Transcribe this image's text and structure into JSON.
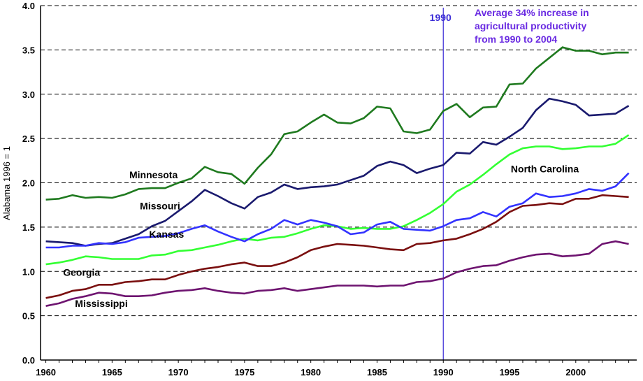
{
  "chart_data": {
    "type": "line",
    "ylabel": "Alabama 1996 = 1",
    "xlim": [
      1960,
      2004
    ],
    "ylim": [
      0,
      4
    ],
    "x_ticks": [
      1960,
      1965,
      1970,
      1975,
      1980,
      1985,
      1990,
      1995,
      2000
    ],
    "y_ticks": [
      "0.0",
      "0.5",
      "1.0",
      "1.5",
      "2.0",
      "2.5",
      "3.0",
      "3.5",
      "4.0"
    ],
    "grid": "horizontal dashed",
    "x": [
      1960,
      1961,
      1962,
      1963,
      1964,
      1965,
      1966,
      1967,
      1968,
      1969,
      1970,
      1971,
      1972,
      1973,
      1974,
      1975,
      1976,
      1977,
      1978,
      1979,
      1980,
      1981,
      1982,
      1983,
      1984,
      1985,
      1986,
      1987,
      1988,
      1989,
      1990,
      1991,
      1992,
      1993,
      1994,
      1995,
      1996,
      1997,
      1998,
      1999,
      2000,
      2001,
      2002,
      2003,
      2004
    ],
    "series": [
      {
        "name": "Minnesota",
        "color": "#1f7a1f",
        "values": [
          1.81,
          1.82,
          1.86,
          1.83,
          1.84,
          1.83,
          1.87,
          1.93,
          1.94,
          1.94,
          2.0,
          2.05,
          2.18,
          2.12,
          2.1,
          1.99,
          2.17,
          2.32,
          2.55,
          2.58,
          2.68,
          2.77,
          2.68,
          2.67,
          2.73,
          2.86,
          2.84,
          2.58,
          2.56,
          2.6,
          2.81,
          2.89,
          2.74,
          2.85,
          2.86,
          3.11,
          3.12,
          3.29,
          3.41,
          3.53,
          3.49,
          3.49,
          3.45,
          3.47,
          3.47
        ]
      },
      {
        "name": "Missouri",
        "color": "#1a1a6e",
        "values": [
          1.34,
          1.33,
          1.32,
          1.29,
          1.31,
          1.32,
          1.37,
          1.42,
          1.51,
          1.57,
          1.68,
          1.79,
          1.92,
          1.85,
          1.77,
          1.71,
          1.84,
          1.89,
          1.98,
          1.93,
          1.95,
          1.96,
          1.98,
          2.03,
          2.08,
          2.19,
          2.24,
          2.2,
          2.11,
          2.16,
          2.2,
          2.34,
          2.33,
          2.46,
          2.43,
          2.52,
          2.62,
          2.82,
          2.95,
          2.92,
          2.88,
          2.76,
          2.77,
          2.78,
          2.87
        ]
      },
      {
        "name": "North Carolina",
        "color": "#33ff33",
        "values": [
          1.08,
          1.1,
          1.13,
          1.17,
          1.16,
          1.14,
          1.14,
          1.14,
          1.18,
          1.19,
          1.23,
          1.24,
          1.27,
          1.3,
          1.34,
          1.37,
          1.35,
          1.38,
          1.39,
          1.43,
          1.48,
          1.52,
          1.51,
          1.48,
          1.49,
          1.48,
          1.48,
          1.51,
          1.58,
          1.66,
          1.76,
          1.9,
          1.98,
          2.09,
          2.21,
          2.32,
          2.39,
          2.41,
          2.41,
          2.38,
          2.39,
          2.41,
          2.41,
          2.44,
          2.54
        ]
      },
      {
        "name": "Kansas",
        "color": "#3333ff",
        "values": [
          1.27,
          1.27,
          1.29,
          1.29,
          1.32,
          1.31,
          1.33,
          1.38,
          1.39,
          1.4,
          1.43,
          1.48,
          1.52,
          1.45,
          1.39,
          1.34,
          1.42,
          1.48,
          1.58,
          1.53,
          1.58,
          1.55,
          1.51,
          1.42,
          1.44,
          1.53,
          1.56,
          1.48,
          1.47,
          1.46,
          1.51,
          1.58,
          1.6,
          1.67,
          1.62,
          1.73,
          1.77,
          1.88,
          1.84,
          1.85,
          1.88,
          1.93,
          1.91,
          1.96,
          2.11
        ]
      },
      {
        "name": "Georgia",
        "color": "#7a0f0f",
        "values": [
          0.7,
          0.73,
          0.78,
          0.8,
          0.85,
          0.85,
          0.88,
          0.89,
          0.91,
          0.91,
          0.96,
          1.0,
          1.03,
          1.05,
          1.08,
          1.1,
          1.06,
          1.06,
          1.1,
          1.16,
          1.24,
          1.28,
          1.31,
          1.3,
          1.29,
          1.27,
          1.25,
          1.24,
          1.31,
          1.32,
          1.35,
          1.37,
          1.42,
          1.48,
          1.56,
          1.67,
          1.74,
          1.75,
          1.77,
          1.76,
          1.82,
          1.82,
          1.86,
          1.85,
          1.84
        ]
      },
      {
        "name": "Mississippi",
        "color": "#6e1470",
        "values": [
          0.61,
          0.64,
          0.69,
          0.72,
          0.76,
          0.75,
          0.72,
          0.72,
          0.73,
          0.76,
          0.78,
          0.79,
          0.81,
          0.78,
          0.76,
          0.75,
          0.78,
          0.79,
          0.81,
          0.78,
          0.8,
          0.82,
          0.84,
          0.84,
          0.84,
          0.83,
          0.84,
          0.84,
          0.88,
          0.89,
          0.92,
          0.99,
          1.03,
          1.06,
          1.07,
          1.12,
          1.16,
          1.19,
          1.2,
          1.17,
          1.18,
          1.2,
          1.31,
          1.34,
          1.31
        ]
      }
    ],
    "annotations": {
      "marker_year": 1990,
      "marker_label": "1990",
      "marker_color": "#3a2bd6",
      "note_lines": [
        "Average 34% increase in",
        "agricultural productivity",
        "from 1990 to 2004"
      ],
      "note_color": "#6a2be2"
    }
  }
}
